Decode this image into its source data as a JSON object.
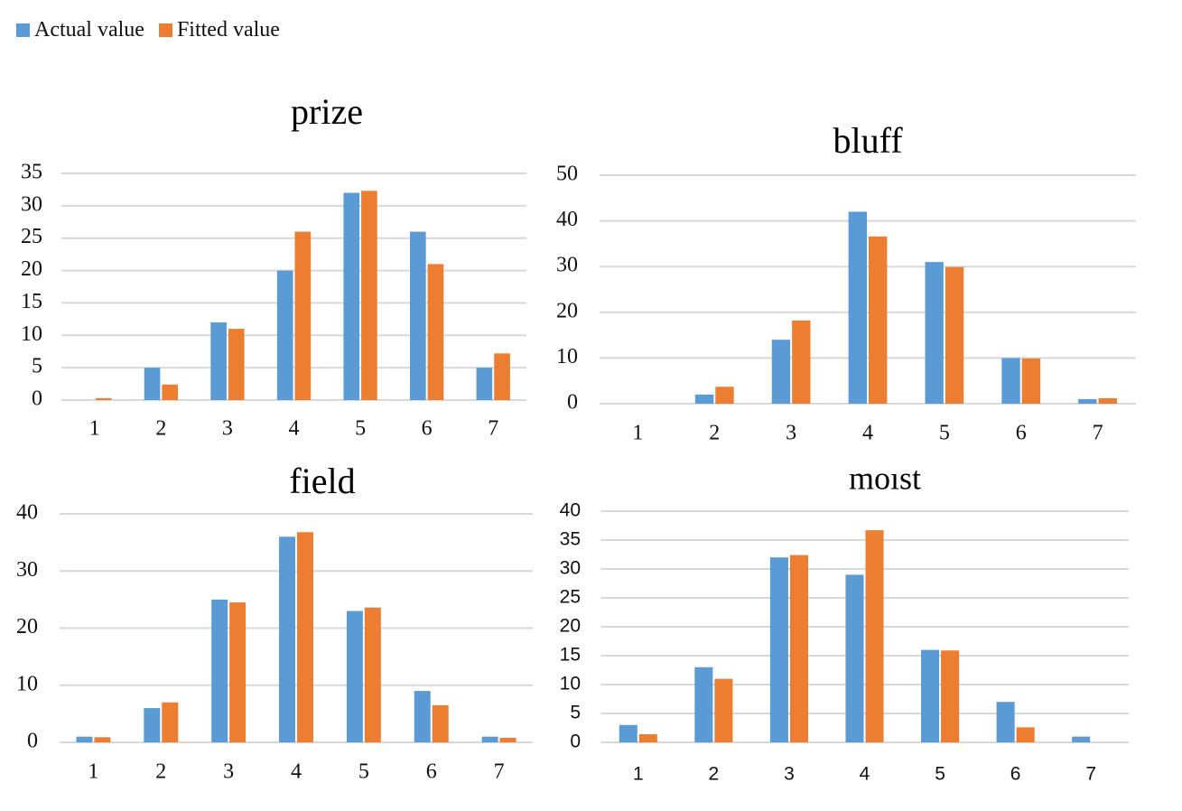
{
  "legend": {
    "actual_label": "Actual value",
    "fitted_label": "Fitted value"
  },
  "colors": {
    "actual": "#5b9bd5",
    "fitted": "#ed7d31",
    "grid": "#d9d9d9"
  },
  "chart_data": [
    {
      "type": "bar",
      "title": "prize",
      "categories": [
        "1",
        "2",
        "3",
        "4",
        "5",
        "6",
        "7"
      ],
      "series": [
        {
          "name": "Actual value",
          "values": [
            0,
            5,
            12,
            20,
            32,
            26,
            5
          ]
        },
        {
          "name": "Fitted value",
          "values": [
            0.3,
            2.4,
            11,
            26,
            32.3,
            21,
            7.2
          ]
        }
      ],
      "yticks": [
        0,
        5,
        10,
        15,
        20,
        25,
        30,
        35
      ],
      "ylim": [
        0,
        35
      ],
      "grid": true,
      "legend": "top-left"
    },
    {
      "type": "bar",
      "title": "bluff",
      "categories": [
        "1",
        "2",
        "3",
        "4",
        "5",
        "6",
        "7"
      ],
      "series": [
        {
          "name": "Actual value",
          "values": [
            0,
            2,
            14,
            42,
            31,
            10,
            1
          ]
        },
        {
          "name": "Fitted value",
          "values": [
            0,
            3.7,
            18.2,
            36.6,
            29.9,
            9.9,
            1.2
          ]
        }
      ],
      "yticks": [
        0,
        10,
        20,
        30,
        40,
        50
      ],
      "ylim": [
        0,
        50
      ],
      "grid": true,
      "legend": "top-left"
    },
    {
      "type": "bar",
      "title": "field",
      "categories": [
        "1",
        "2",
        "3",
        "4",
        "5",
        "6",
        "7"
      ],
      "series": [
        {
          "name": "Actual value",
          "values": [
            1,
            6,
            25,
            36,
            23,
            9,
            1
          ]
        },
        {
          "name": "Fitted value",
          "values": [
            0.9,
            7,
            24.5,
            36.8,
            23.6,
            6.5,
            0.8
          ]
        }
      ],
      "yticks": [
        0,
        10,
        20,
        30,
        40
      ],
      "ylim": [
        0,
        40
      ],
      "grid": true,
      "legend": "top-left"
    },
    {
      "type": "bar",
      "title": "moıst",
      "categories": [
        "1",
        "2",
        "3",
        "4",
        "5",
        "6",
        "7"
      ],
      "series": [
        {
          "name": "Actual value",
          "values": [
            3,
            13,
            32,
            29,
            16,
            7,
            1
          ]
        },
        {
          "name": "Fitted value",
          "values": [
            1.4,
            11,
            32.4,
            36.7,
            15.9,
            2.6,
            0
          ]
        }
      ],
      "yticks": [
        0,
        5,
        10,
        15,
        20,
        25,
        30,
        35,
        40
      ],
      "ylim": [
        0,
        40
      ],
      "grid": true,
      "legend": "top-left"
    }
  ]
}
